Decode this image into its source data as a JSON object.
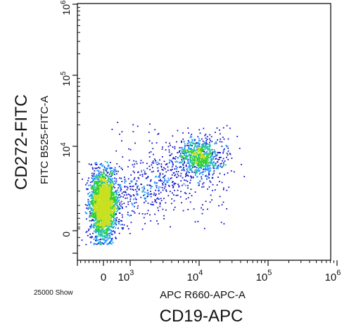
{
  "figure": {
    "outer_x_label": "CD19-APC",
    "outer_y_label": "CD272-FITC",
    "event_count_text": "25000 Show"
  },
  "chart_data": {
    "type": "scatter",
    "subtype": "flow-cytometry density dot plot (pseudocolor)",
    "xlabel": "APC R660-APC-A",
    "ylabel": "FITC B525-FITC-A",
    "x_scale": "biexponential",
    "y_scale": "biexponential",
    "xlim": [
      -900,
      1000000
    ],
    "ylim": [
      -900,
      1000000
    ],
    "x_ticks": [
      {
        "value": 0,
        "base": "0",
        "exp": ""
      },
      {
        "value": 1000,
        "base": "10",
        "exp": "3"
      },
      {
        "value": 10000,
        "base": "10",
        "exp": "4"
      },
      {
        "value": 100000,
        "base": "10",
        "exp": "5"
      },
      {
        "value": 1000000,
        "base": "10",
        "exp": "6"
      }
    ],
    "y_ticks": [
      {
        "value": 0,
        "base": "0",
        "exp": ""
      },
      {
        "value": 10000,
        "base": "10",
        "exp": "4"
      },
      {
        "value": 100000,
        "base": "10",
        "exp": "5"
      },
      {
        "value": 1000000,
        "base": "10",
        "exp": "6"
      }
    ],
    "total_events": 25000,
    "populations": [
      {
        "description": "CD19-negative, CD272-negative",
        "x_center": 0,
        "y_center": 150,
        "relative_density": "high"
      },
      {
        "description": "CD19-positive, CD272-positive",
        "x_center": 9000,
        "y_center": 9500,
        "relative_density": "low"
      }
    ],
    "color_scale": [
      "#1010c8",
      "#1e90ff",
      "#20c0a0",
      "#30d030",
      "#c8e020"
    ],
    "grid": false,
    "legend": "none"
  }
}
